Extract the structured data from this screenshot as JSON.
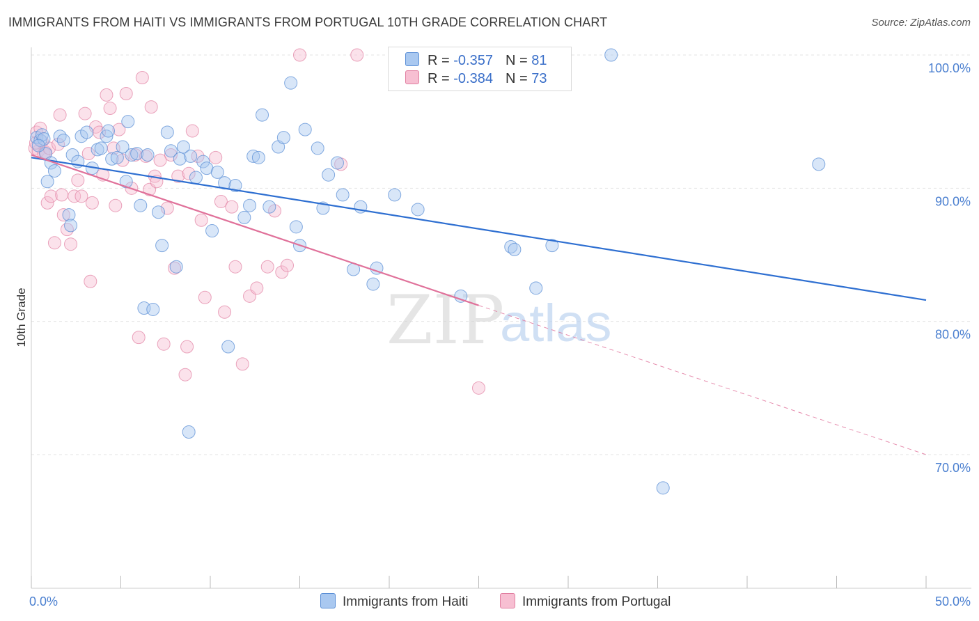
{
  "title": "IMMIGRANTS FROM HAITI VS IMMIGRANTS FROM PORTUGAL 10TH GRADE CORRELATION CHART",
  "source": "Source: ZipAtlas.com",
  "watermark": {
    "zip": "ZIP",
    "atlas": "atlas"
  },
  "legend_top": {
    "rows": [
      {
        "r_label": "R =",
        "r_value": "-0.357",
        "n_label": "N =",
        "n_value": "81",
        "color": "#a9c8f0",
        "border": "#5b8fd6"
      },
      {
        "r_label": "R =",
        "r_value": "-0.384",
        "n_label": "N =",
        "n_value": "73",
        "color": "#f7bfd2",
        "border": "#e17fa1"
      }
    ]
  },
  "legend_bottom": [
    {
      "label": "Immigrants from Haiti",
      "color": "#a9c8f0",
      "border": "#5b8fd6"
    },
    {
      "label": "Immigrants from Portugal",
      "color": "#f7bfd2",
      "border": "#e17fa1"
    }
  ],
  "chart_data": {
    "type": "scatter",
    "ylabel": "10th Grade",
    "xlabel": "",
    "xlim": [
      0,
      50
    ],
    "ylim": [
      60,
      102
    ],
    "x_tick_labels": [
      "0.0%",
      "50.0%"
    ],
    "y_ticks": [
      70,
      80,
      90,
      100
    ],
    "y_tick_labels": [
      "70.0%",
      "80.0%",
      "90.0%",
      "100.0%"
    ],
    "colors": {
      "haiti_fill": "#a9c8f0",
      "haiti_stroke": "#5b8fd6",
      "haiti_line": "#2e6fd1",
      "portugal_fill": "#f7bfd2",
      "portugal_stroke": "#e17fa1",
      "portugal_line": "#e0719a"
    },
    "series": [
      {
        "name": "Immigrants from Haiti",
        "r": -0.357,
        "n": 81,
        "trend": {
          "x": [
            0,
            50
          ],
          "y": [
            92.3,
            81.6
          ]
        },
        "points": [
          [
            0.3,
            93.8
          ],
          [
            0.5,
            93.6
          ],
          [
            0.6,
            94.0
          ],
          [
            0.7,
            93.7
          ],
          [
            0.8,
            92.6
          ],
          [
            0.9,
            90.5
          ],
          [
            1.1,
            91.9
          ],
          [
            1.3,
            91.3
          ],
          [
            1.6,
            93.9
          ],
          [
            1.8,
            93.6
          ],
          [
            2.1,
            88.0
          ],
          [
            2.2,
            87.2
          ],
          [
            2.3,
            92.5
          ],
          [
            2.6,
            92.0
          ],
          [
            2.8,
            93.9
          ],
          [
            3.1,
            94.2
          ],
          [
            3.4,
            91.5
          ],
          [
            3.7,
            92.9
          ],
          [
            3.9,
            93.0
          ],
          [
            4.2,
            93.9
          ],
          [
            4.3,
            94.3
          ],
          [
            4.5,
            92.2
          ],
          [
            4.8,
            92.3
          ],
          [
            5.1,
            93.1
          ],
          [
            5.3,
            90.5
          ],
          [
            5.4,
            95.0
          ],
          [
            5.6,
            92.5
          ],
          [
            5.9,
            92.6
          ],
          [
            6.1,
            88.7
          ],
          [
            6.3,
            81.0
          ],
          [
            6.5,
            92.5
          ],
          [
            6.8,
            80.9
          ],
          [
            7.1,
            88.2
          ],
          [
            7.3,
            85.7
          ],
          [
            7.6,
            94.2
          ],
          [
            7.8,
            92.8
          ],
          [
            8.1,
            84.1
          ],
          [
            8.3,
            92.2
          ],
          [
            8.5,
            93.1
          ],
          [
            8.8,
            71.7
          ],
          [
            8.9,
            92.4
          ],
          [
            9.2,
            90.8
          ],
          [
            9.6,
            92.0
          ],
          [
            9.8,
            91.5
          ],
          [
            10.1,
            86.8
          ],
          [
            10.4,
            91.2
          ],
          [
            10.8,
            90.4
          ],
          [
            11.0,
            78.1
          ],
          [
            11.4,
            90.2
          ],
          [
            11.9,
            87.8
          ],
          [
            12.2,
            88.7
          ],
          [
            12.4,
            92.4
          ],
          [
            12.7,
            92.3
          ],
          [
            12.9,
            95.5
          ],
          [
            13.3,
            88.6
          ],
          [
            13.8,
            93.1
          ],
          [
            14.1,
            93.8
          ],
          [
            14.5,
            97.9
          ],
          [
            14.8,
            87.1
          ],
          [
            15.0,
            85.7
          ],
          [
            15.3,
            94.4
          ],
          [
            16.0,
            93.0
          ],
          [
            16.3,
            88.5
          ],
          [
            16.6,
            91.0
          ],
          [
            17.1,
            91.9
          ],
          [
            17.4,
            89.5
          ],
          [
            18.0,
            83.9
          ],
          [
            18.4,
            88.6
          ],
          [
            19.1,
            82.8
          ],
          [
            19.3,
            84.0
          ],
          [
            20.3,
            89.5
          ],
          [
            21.6,
            88.4
          ],
          [
            24.0,
            81.9
          ],
          [
            26.8,
            85.6
          ],
          [
            27.0,
            85.4
          ],
          [
            28.2,
            82.5
          ],
          [
            29.1,
            85.7
          ],
          [
            32.4,
            100.0
          ],
          [
            35.3,
            67.5
          ],
          [
            44.0,
            91.8
          ],
          [
            0.4,
            93.2
          ]
        ]
      },
      {
        "name": "Immigrants from Portugal",
        "r": -0.384,
        "n": 73,
        "trend": {
          "x": [
            0,
            25
          ],
          "y": [
            92.5,
            81.2
          ]
        },
        "trend_dashed": {
          "x": [
            25,
            50
          ],
          "y": [
            81.2,
            70.0
          ]
        },
        "points": [
          [
            0.2,
            93.0
          ],
          [
            0.3,
            94.2
          ],
          [
            0.4,
            92.8
          ],
          [
            0.5,
            94.5
          ],
          [
            0.6,
            93.5
          ],
          [
            0.7,
            92.6
          ],
          [
            0.8,
            92.7
          ],
          [
            0.9,
            88.9
          ],
          [
            1.0,
            93.0
          ],
          [
            1.1,
            89.4
          ],
          [
            1.3,
            85.9
          ],
          [
            1.5,
            93.3
          ],
          [
            1.6,
            95.5
          ],
          [
            1.7,
            89.5
          ],
          [
            1.8,
            88.0
          ],
          [
            2.0,
            86.9
          ],
          [
            2.2,
            85.8
          ],
          [
            2.4,
            89.4
          ],
          [
            2.6,
            90.6
          ],
          [
            2.8,
            89.4
          ],
          [
            3.0,
            95.6
          ],
          [
            3.2,
            92.6
          ],
          [
            3.3,
            83.0
          ],
          [
            3.4,
            88.9
          ],
          [
            3.6,
            94.6
          ],
          [
            3.8,
            94.2
          ],
          [
            4.0,
            91.0
          ],
          [
            4.2,
            97.0
          ],
          [
            4.4,
            96.0
          ],
          [
            4.6,
            93.0
          ],
          [
            4.7,
            88.7
          ],
          [
            4.9,
            94.4
          ],
          [
            5.1,
            92.1
          ],
          [
            5.3,
            97.1
          ],
          [
            5.6,
            90.0
          ],
          [
            5.8,
            92.5
          ],
          [
            6.0,
            78.8
          ],
          [
            6.2,
            98.3
          ],
          [
            6.4,
            92.4
          ],
          [
            6.6,
            89.9
          ],
          [
            6.7,
            96.1
          ],
          [
            6.9,
            90.9
          ],
          [
            7.0,
            90.5
          ],
          [
            7.2,
            92.1
          ],
          [
            7.4,
            78.3
          ],
          [
            7.6,
            88.5
          ],
          [
            7.8,
            92.5
          ],
          [
            8.0,
            84.0
          ],
          [
            8.2,
            90.9
          ],
          [
            8.6,
            76.0
          ],
          [
            8.7,
            78.1
          ],
          [
            8.8,
            91.1
          ],
          [
            9.0,
            94.3
          ],
          [
            9.3,
            92.4
          ],
          [
            9.5,
            87.6
          ],
          [
            9.7,
            81.8
          ],
          [
            10.3,
            92.3
          ],
          [
            10.6,
            89.0
          ],
          [
            10.8,
            80.7
          ],
          [
            11.2,
            88.6
          ],
          [
            11.4,
            84.1
          ],
          [
            11.8,
            76.8
          ],
          [
            12.2,
            81.9
          ],
          [
            12.6,
            82.5
          ],
          [
            13.2,
            84.1
          ],
          [
            13.6,
            88.3
          ],
          [
            14.0,
            83.7
          ],
          [
            14.3,
            84.2
          ],
          [
            15.0,
            100.0
          ],
          [
            17.3,
            91.8
          ],
          [
            18.2,
            100.0
          ],
          [
            25.0,
            75.0
          ],
          [
            0.25,
            93.4
          ]
        ]
      }
    ]
  }
}
